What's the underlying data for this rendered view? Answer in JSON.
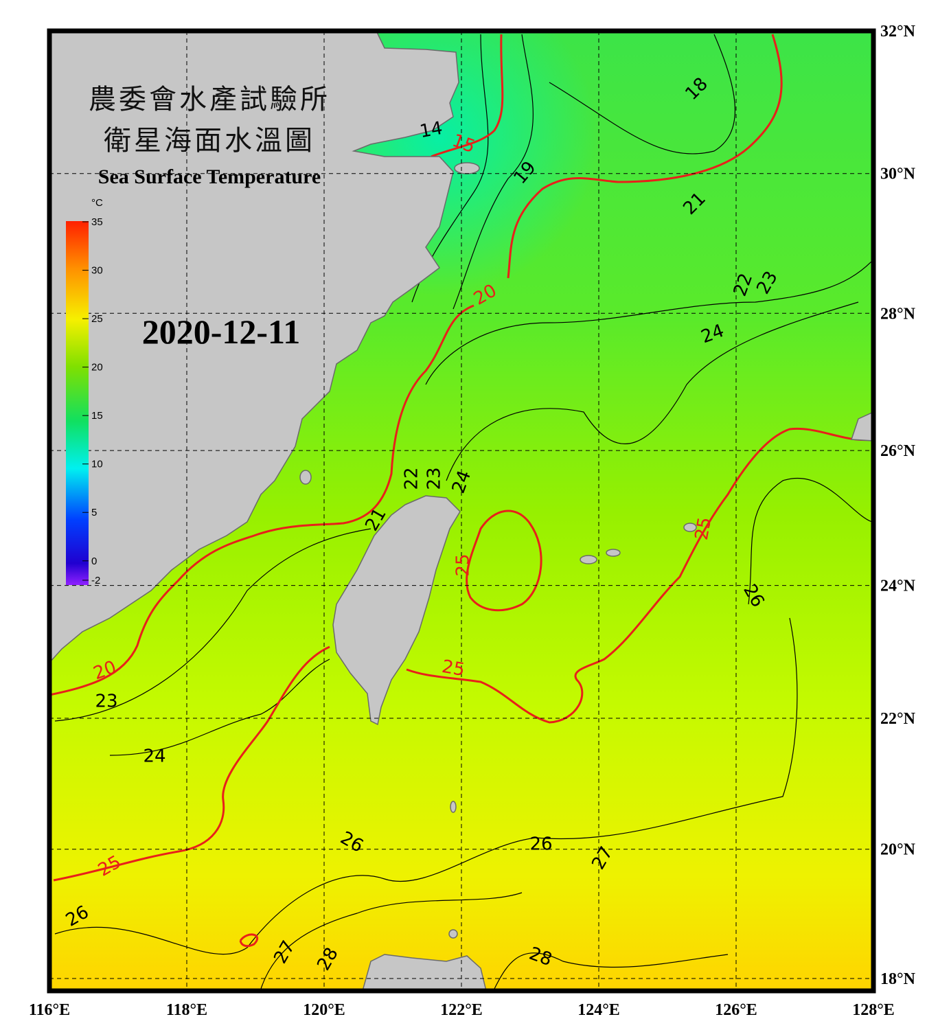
{
  "header": {
    "title_zh_1": "農委會水產試驗所",
    "title_zh_2": "衛星海面水溫圖",
    "title_en": "Sea Surface Temperature",
    "date": "2020-12-11"
  },
  "colorbar": {
    "unit": "°C",
    "lim": [
      -2,
      35
    ],
    "ticks": [
      35,
      30,
      25,
      20,
      15,
      10,
      5,
      0,
      -2
    ]
  },
  "axes": {
    "xlim": [
      116,
      128
    ],
    "ylim": [
      18,
      32
    ],
    "xticks": [
      {
        "value": 116,
        "label": "116°E"
      },
      {
        "value": 118,
        "label": "118°E"
      },
      {
        "value": 120,
        "label": "120°E"
      },
      {
        "value": 122,
        "label": "122°E"
      },
      {
        "value": 124,
        "label": "124°E"
      },
      {
        "value": 126,
        "label": "126°E"
      },
      {
        "value": 128,
        "label": "128°E"
      }
    ],
    "yticks": [
      {
        "value": 18,
        "label": "18°N"
      },
      {
        "value": 20,
        "label": "20°N"
      },
      {
        "value": 22,
        "label": "22°N"
      },
      {
        "value": 24,
        "label": "24°N"
      },
      {
        "value": 26,
        "label": "26°N"
      },
      {
        "value": 28,
        "label": "28°N"
      },
      {
        "value": 30,
        "label": "30°N"
      },
      {
        "value": 32,
        "label": "32°N"
      }
    ]
  },
  "contour_labels": [
    14,
    15,
    18,
    19,
    21,
    22,
    23,
    20,
    24,
    22,
    23,
    24,
    21,
    25,
    25,
    26,
    20,
    23,
    25,
    24,
    26,
    26,
    27,
    25,
    26,
    27,
    28,
    28
  ]
}
